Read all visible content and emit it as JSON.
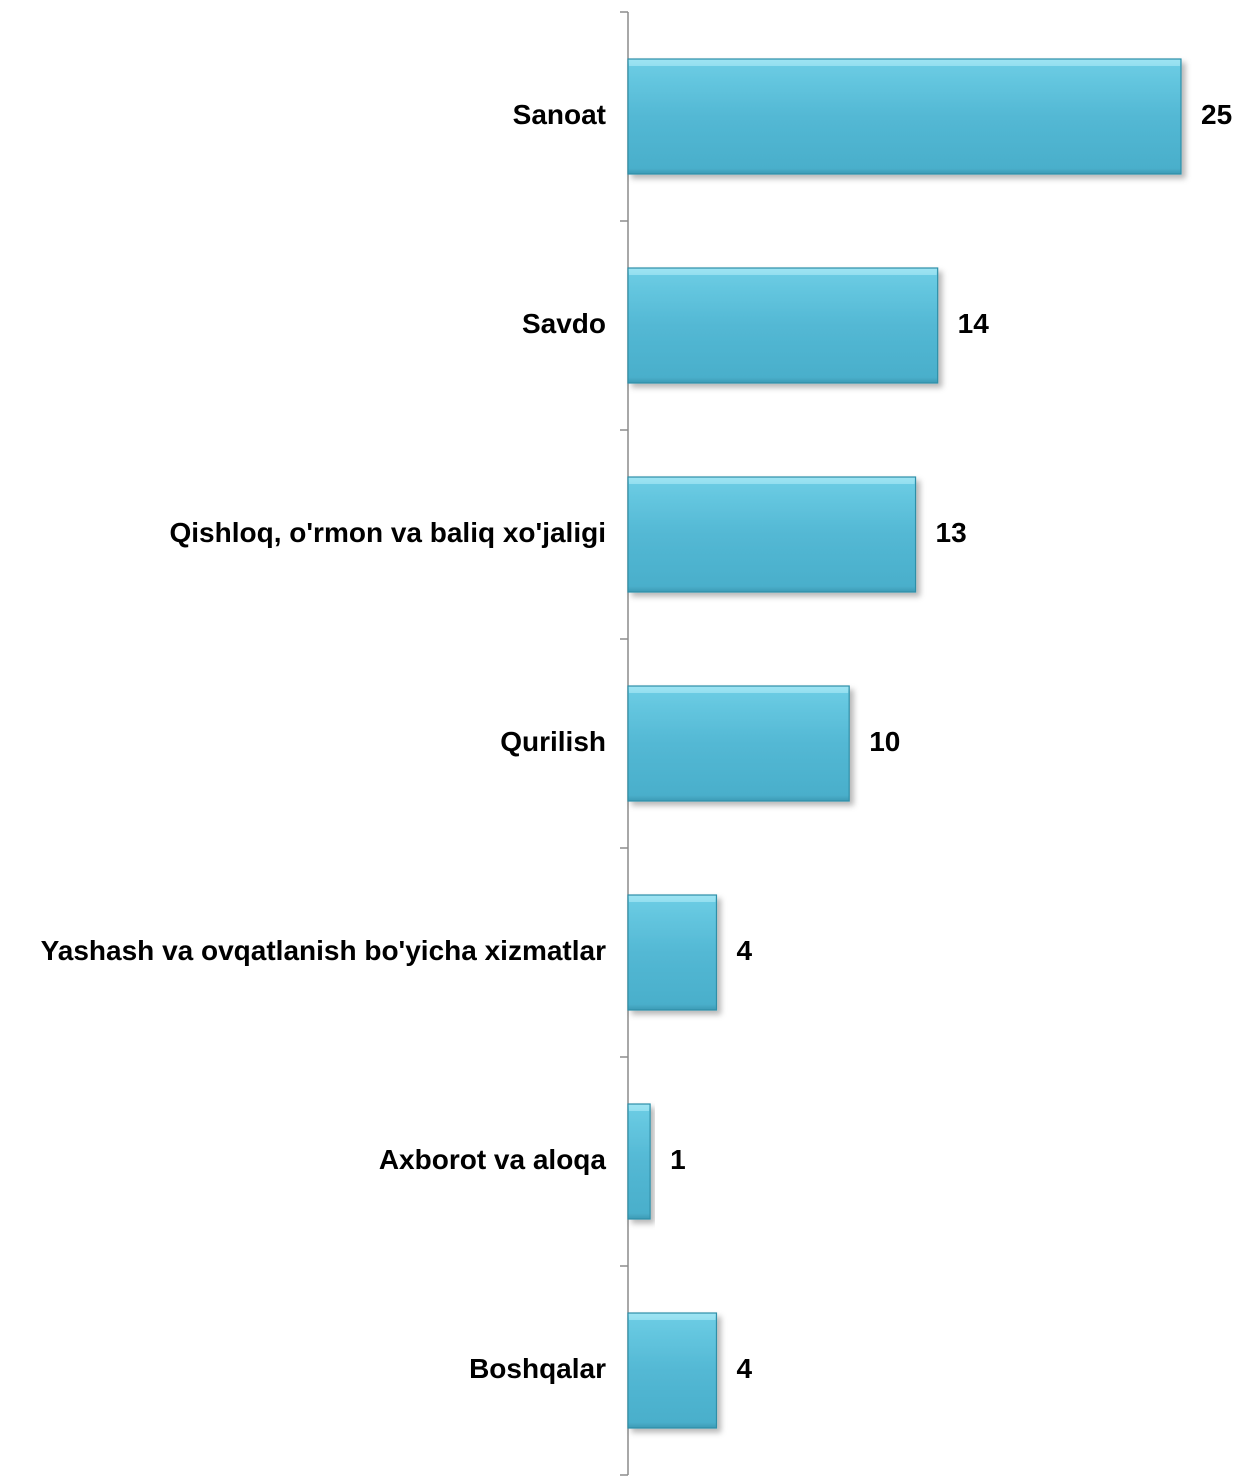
{
  "chart_data": {
    "type": "bar",
    "orientation": "horizontal",
    "categories": [
      "Sanoat",
      "Savdo",
      "Qishloq, o'rmon va baliq xo'jaligi",
      "Qurilish",
      "Yashash va ovqatlanish bo'yicha xizmatlar",
      "Axborot va aloqa",
      "Boshqalar"
    ],
    "values": [
      25,
      14,
      13,
      10,
      4,
      1,
      4
    ],
    "xlim": [
      0,
      25
    ],
    "grid": false,
    "legend": "none",
    "colors": {
      "bar_fill": "#53B8D4",
      "bar_highlight": "#9EE3F2",
      "bar_edge": "#2F8FA8",
      "axis": "#8C8C8C"
    }
  }
}
